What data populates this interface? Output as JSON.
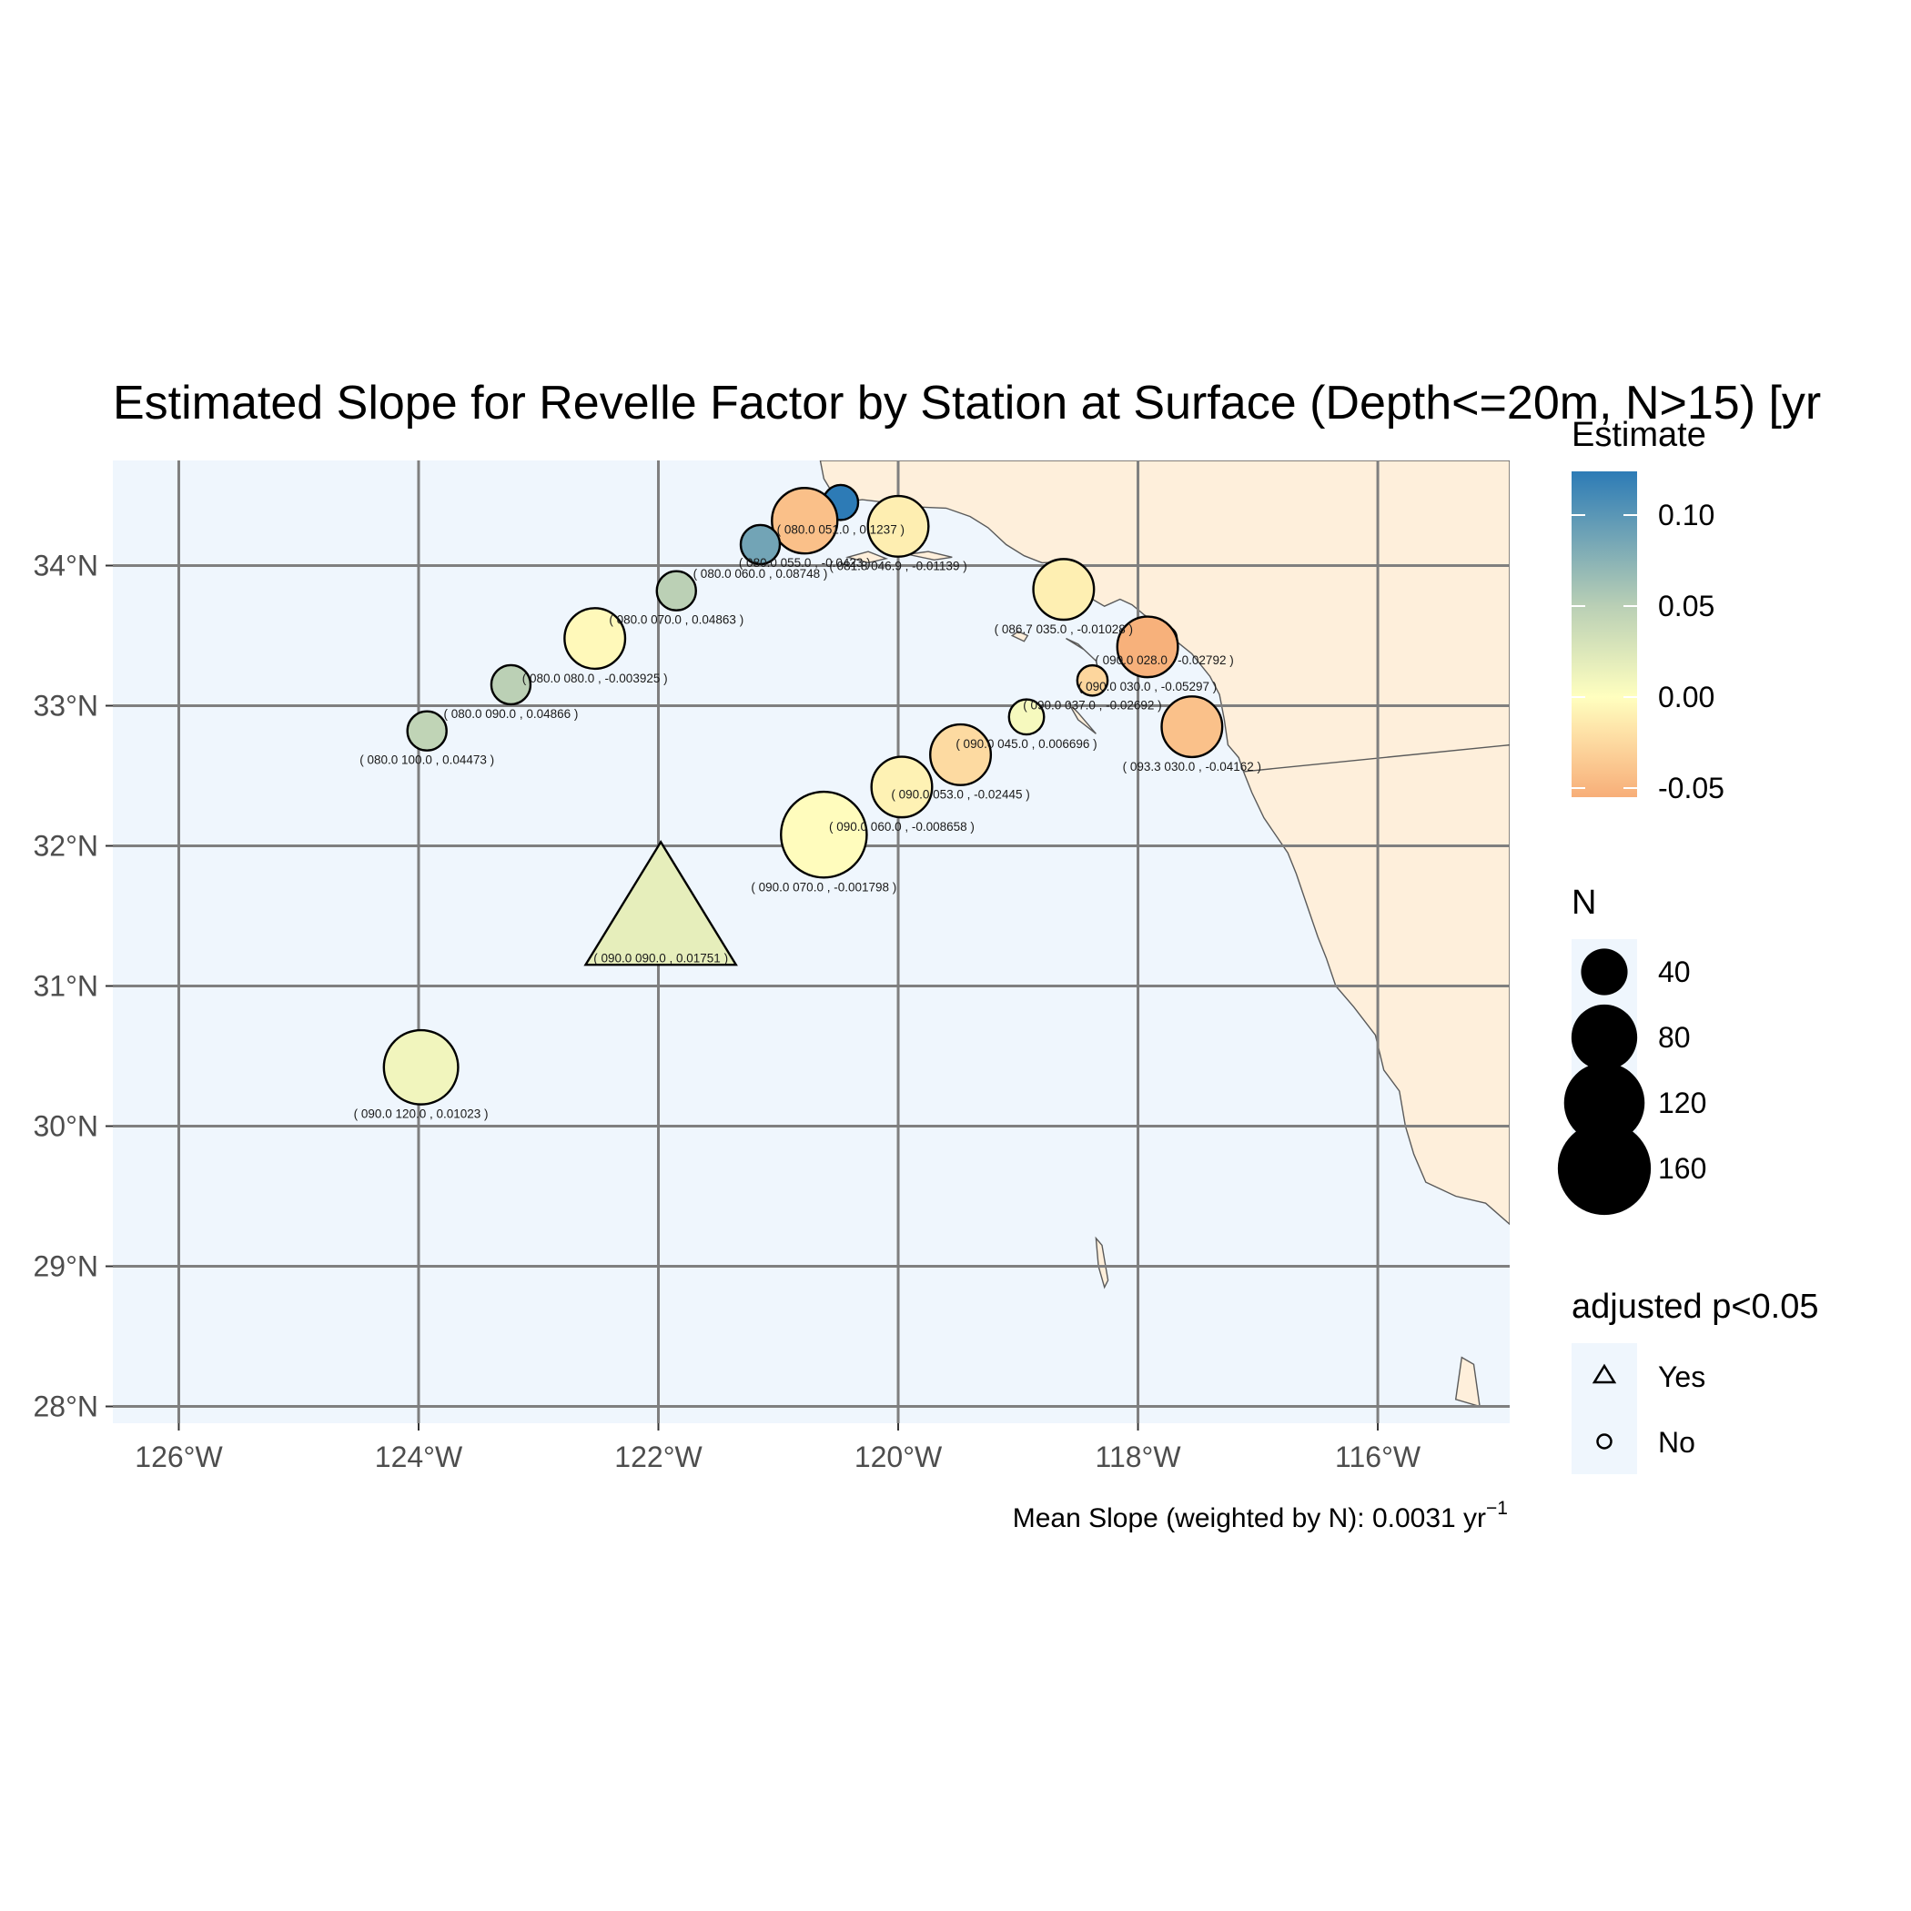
{
  "title": "Estimated Slope for Revelle Factor by Station at Surface (Depth<=20m, N>15) [yr",
  "caption": {
    "text": "Mean Slope (weighted by N): 0.0031 yr",
    "superscript": "−1"
  },
  "colors": {
    "ocean": "#eff6fd",
    "land": "#feefdb",
    "coast": "#5a5a5a",
    "grid": "#7f7f7f",
    "legend_key_bg": "#eff6fd"
  },
  "axes": {
    "x": {
      "ticks": [
        -126,
        -124,
        -122,
        -120,
        -118,
        -116
      ],
      "tick_labels": [
        "126°W",
        "124°W",
        "122°W",
        "120°W",
        "118°W",
        "116°W"
      ],
      "lim": [
        -126.55,
        -114.9
      ]
    },
    "y": {
      "ticks": [
        28,
        29,
        30,
        31,
        32,
        33,
        34
      ],
      "tick_labels": [
        "28°N",
        "29°N",
        "30°N",
        "31°N",
        "32°N",
        "33°N",
        "34°N"
      ],
      "lim": [
        27.88,
        34.75
      ]
    },
    "grid": true
  },
  "legend": {
    "estimate": {
      "title": "Estimate",
      "breaks": [
        0.1,
        0.05,
        0.0,
        -0.05
      ],
      "labels": [
        "0.10",
        "0.05",
        "0.00",
        "-0.05"
      ],
      "range": [
        -0.055,
        0.124
      ],
      "stops": [
        {
          "value": -0.055,
          "color": "#f7ae78"
        },
        {
          "value": -0.025,
          "color": "#fdd9a0"
        },
        {
          "value": 0.0,
          "color": "#ffffbf"
        },
        {
          "value": 0.05,
          "color": "#b9cfb5"
        },
        {
          "value": 0.124,
          "color": "#2c7bb6"
        }
      ]
    },
    "n": {
      "title": "N",
      "labels": [
        "40",
        "80",
        "120",
        "160"
      ],
      "values": [
        40,
        80,
        120,
        160
      ]
    },
    "significance": {
      "title": "adjusted p<0.05",
      "labels": [
        "Yes",
        "No"
      ]
    }
  },
  "chart_data": {
    "type": "scatter",
    "x_unit": "longitude (degrees east)",
    "y_unit": "latitude (degrees north)",
    "points": [
      {
        "lon": -120.48,
        "lat": 34.45,
        "n": 20,
        "estimate": 0.1237,
        "sig": false,
        "label": "( 080.0 051.0 , 0.1237 )"
      },
      {
        "lon": -120.78,
        "lat": 34.32,
        "n": 70,
        "estimate": -0.0423,
        "sig": false,
        "label": "( 080.0 055.0 , -0.0423 )"
      },
      {
        "lon": -120.0,
        "lat": 34.28,
        "n": 60,
        "estimate": -0.01139,
        "sig": false,
        "label": "( 081.8 046.9 , -0.01139 )"
      },
      {
        "lon": -121.15,
        "lat": 34.15,
        "n": 25,
        "estimate": 0.08748,
        "sig": false,
        "label": "( 080.0 060.0 , 0.08748 )"
      },
      {
        "lon": -121.85,
        "lat": 33.82,
        "n": 25,
        "estimate": 0.04863,
        "sig": false,
        "label": "( 080.0 070.0 , 0.04863 )"
      },
      {
        "lon": -118.62,
        "lat": 33.83,
        "n": 60,
        "estimate": -0.01028,
        "sig": false,
        "label": "( 086.7 035.0 , -0.01028 )"
      },
      {
        "lon": -122.53,
        "lat": 33.48,
        "n": 60,
        "estimate": -0.003925,
        "sig": false,
        "label": "( 080.0 080.0 , -0.003925 )"
      },
      {
        "lon": -117.78,
        "lat": 33.48,
        "n": 10,
        "estimate": -0.02792,
        "sig": false,
        "label": "( 090.0 028.0 , -0.02792 )"
      },
      {
        "lon": -117.92,
        "lat": 33.42,
        "n": 60,
        "estimate": -0.05297,
        "sig": false,
        "label": "( 090.0 030.0 , -0.05297 )"
      },
      {
        "lon": -123.23,
        "lat": 33.15,
        "n": 25,
        "estimate": 0.04866,
        "sig": false,
        "label": "( 080.0 090.0 , 0.04866 )"
      },
      {
        "lon": -118.38,
        "lat": 33.18,
        "n": 15,
        "estimate": -0.02692,
        "sig": false,
        "label": "( 090.0 037.0 , -0.02692 )"
      },
      {
        "lon": -118.93,
        "lat": 32.92,
        "n": 20,
        "estimate": 0.006696,
        "sig": false,
        "label": "( 090.0 045.0 , 0.006696 )"
      },
      {
        "lon": -117.55,
        "lat": 32.85,
        "n": 60,
        "estimate": -0.04162,
        "sig": false,
        "label": "( 093.3 030.0 , -0.04162 )"
      },
      {
        "lon": -123.93,
        "lat": 32.82,
        "n": 25,
        "estimate": 0.04473,
        "sig": false,
        "label": "( 080.0 100.0 , 0.04473 )"
      },
      {
        "lon": -119.48,
        "lat": 32.65,
        "n": 60,
        "estimate": -0.02445,
        "sig": false,
        "label": "( 090.0 053.0 , -0.02445 )"
      },
      {
        "lon": -119.97,
        "lat": 32.42,
        "n": 60,
        "estimate": -0.008658,
        "sig": false,
        "label": "( 090.0 060.0 , -0.008658 )"
      },
      {
        "lon": -120.62,
        "lat": 32.08,
        "n": 120,
        "estimate": -0.001798,
        "sig": false,
        "label": "( 090.0 070.0 , -0.001798 )"
      },
      {
        "lon": -121.98,
        "lat": 31.48,
        "n": 160,
        "estimate": 0.01751,
        "sig": true,
        "label": "( 090.0 090.0 , 0.01751 )"
      },
      {
        "lon": -123.98,
        "lat": 30.42,
        "n": 90,
        "estimate": 0.01023,
        "sig": false,
        "label": "( 090.0 120.0 , 0.01023 )"
      }
    ]
  },
  "land": {
    "mainland": [
      [
        -120.65,
        34.75
      ],
      [
        -120.62,
        34.62
      ],
      [
        -120.55,
        34.52
      ],
      [
        -120.47,
        34.45
      ],
      [
        -120.3,
        34.47
      ],
      [
        -120.1,
        34.45
      ],
      [
        -119.9,
        34.42
      ],
      [
        -119.6,
        34.41
      ],
      [
        -119.4,
        34.35
      ],
      [
        -119.25,
        34.27
      ],
      [
        -119.1,
        34.15
      ],
      [
        -118.95,
        34.07
      ],
      [
        -118.8,
        34.02
      ],
      [
        -118.55,
        34.03
      ],
      [
        -118.42,
        33.95
      ],
      [
        -118.4,
        33.85
      ],
      [
        -118.38,
        33.76
      ],
      [
        -118.28,
        33.71
      ],
      [
        -118.15,
        33.76
      ],
      [
        -118.05,
        33.72
      ],
      [
        -117.95,
        33.65
      ],
      [
        -117.85,
        33.59
      ],
      [
        -117.68,
        33.46
      ],
      [
        -117.55,
        33.37
      ],
      [
        -117.4,
        33.21
      ],
      [
        -117.32,
        33.08
      ],
      [
        -117.28,
        32.9
      ],
      [
        -117.25,
        32.72
      ],
      [
        -117.16,
        32.63
      ],
      [
        -117.12,
        32.53
      ],
      [
        -117.05,
        32.38
      ],
      [
        -116.95,
        32.2
      ],
      [
        -116.75,
        31.95
      ],
      [
        -116.68,
        31.8
      ],
      [
        -116.6,
        31.6
      ],
      [
        -116.5,
        31.35
      ],
      [
        -116.43,
        31.2
      ],
      [
        -116.35,
        31.0
      ],
      [
        -116.2,
        30.85
      ],
      [
        -116.02,
        30.65
      ],
      [
        -115.95,
        30.4
      ],
      [
        -115.82,
        30.25
      ],
      [
        -115.77,
        30.0
      ],
      [
        -115.7,
        29.8
      ],
      [
        -115.6,
        29.6
      ],
      [
        -115.35,
        29.5
      ],
      [
        -115.1,
        29.45
      ],
      [
        -114.9,
        29.3
      ],
      [
        -114.9,
        34.75
      ]
    ],
    "channel_islands": [
      [
        [
          -120.42,
          34.06
        ],
        [
          -120.25,
          34.02
        ],
        [
          -120.1,
          34.05
        ],
        [
          -120.25,
          34.1
        ]
      ],
      [
        [
          -119.92,
          34.08
        ],
        [
          -119.7,
          34.04
        ],
        [
          -119.55,
          34.06
        ],
        [
          -119.75,
          34.1
        ]
      ],
      [
        [
          -119.05,
          33.5
        ],
        [
          -118.95,
          33.46
        ],
        [
          -118.92,
          33.5
        ],
        [
          -119.0,
          33.53
        ]
      ],
      [
        [
          -118.6,
          33.48
        ],
        [
          -118.45,
          33.4
        ],
        [
          -118.35,
          33.32
        ],
        [
          -118.5,
          33.44
        ]
      ],
      [
        [
          -118.58,
          33.02
        ],
        [
          -118.5,
          32.9
        ],
        [
          -118.35,
          32.8
        ],
        [
          -118.5,
          32.95
        ]
      ]
    ],
    "mexico_islands": [
      [
        [
          -118.35,
          29.2
        ],
        [
          -118.3,
          29.15
        ],
        [
          -118.25,
          28.9
        ],
        [
          -118.28,
          28.85
        ],
        [
          -118.33,
          29.0
        ]
      ],
      [
        [
          -115.3,
          28.35
        ],
        [
          -115.2,
          28.3
        ],
        [
          -115.15,
          28.0
        ],
        [
          -115.35,
          28.05
        ]
      ]
    ],
    "border": [
      [
        -117.12,
        32.53
      ],
      [
        -114.9,
        32.72
      ]
    ]
  }
}
